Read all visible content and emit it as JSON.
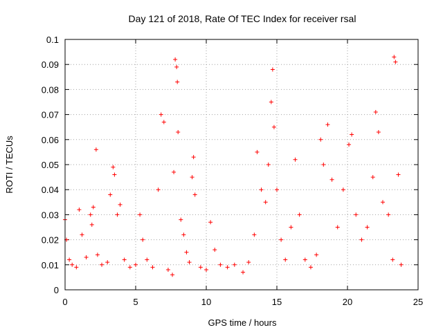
{
  "chart_data": {
    "type": "scatter",
    "title": "Day 121 of 2018, Rate Of TEC Index for receiver rsal",
    "xlabel": "GPS time / hours",
    "ylabel": "ROTI / TECUs",
    "xlim": [
      0,
      25
    ],
    "ylim": [
      0,
      0.1
    ],
    "x_ticks": [
      0,
      5,
      10,
      15,
      20,
      25
    ],
    "x_tick_labels": [
      "0",
      "5",
      "10",
      "15",
      "20",
      "25"
    ],
    "y_ticks": [
      0,
      0.01,
      0.02,
      0.03,
      0.04,
      0.05,
      0.06,
      0.07,
      0.08,
      0.09,
      0.1
    ],
    "y_tick_labels": [
      "0",
      "0.01",
      "0.02",
      "0.03",
      "0.04",
      "0.05",
      "0.06",
      "0.07",
      "0.08",
      "0.09",
      "0.1"
    ],
    "grid": true,
    "marker": "+",
    "marker_color": "#ff0000",
    "series": [
      {
        "name": "ROTI",
        "points": [
          [
            0.0,
            0.028
          ],
          [
            0.1,
            0.02
          ],
          [
            0.3,
            0.012
          ],
          [
            0.5,
            0.01
          ],
          [
            0.8,
            0.009
          ],
          [
            1.0,
            0.032
          ],
          [
            1.2,
            0.022
          ],
          [
            1.5,
            0.013
          ],
          [
            1.8,
            0.03
          ],
          [
            1.9,
            0.026
          ],
          [
            2.0,
            0.033
          ],
          [
            2.2,
            0.056
          ],
          [
            2.3,
            0.014
          ],
          [
            2.6,
            0.01
          ],
          [
            3.0,
            0.011
          ],
          [
            3.2,
            0.038
          ],
          [
            3.4,
            0.049
          ],
          [
            3.5,
            0.046
          ],
          [
            3.7,
            0.03
          ],
          [
            3.9,
            0.034
          ],
          [
            4.2,
            0.012
          ],
          [
            4.6,
            0.009
          ],
          [
            5.0,
            0.01
          ],
          [
            5.3,
            0.03
          ],
          [
            5.5,
            0.02
          ],
          [
            5.8,
            0.012
          ],
          [
            6.2,
            0.009
          ],
          [
            6.6,
            0.04
          ],
          [
            6.8,
            0.07
          ],
          [
            7.0,
            0.067
          ],
          [
            7.3,
            0.008
          ],
          [
            7.6,
            0.006
          ],
          [
            7.7,
            0.047
          ],
          [
            7.8,
            0.092
          ],
          [
            7.9,
            0.089
          ],
          [
            7.95,
            0.083
          ],
          [
            8.0,
            0.063
          ],
          [
            8.2,
            0.028
          ],
          [
            8.4,
            0.022
          ],
          [
            8.6,
            0.015
          ],
          [
            8.8,
            0.011
          ],
          [
            9.0,
            0.045
          ],
          [
            9.1,
            0.053
          ],
          [
            9.2,
            0.038
          ],
          [
            9.6,
            0.009
          ],
          [
            10.0,
            0.008
          ],
          [
            10.3,
            0.027
          ],
          [
            10.6,
            0.016
          ],
          [
            11.0,
            0.01
          ],
          [
            11.5,
            0.009
          ],
          [
            12.0,
            0.01
          ],
          [
            12.6,
            0.007
          ],
          [
            13.0,
            0.011
          ],
          [
            13.4,
            0.022
          ],
          [
            13.6,
            0.055
          ],
          [
            13.9,
            0.04
          ],
          [
            14.2,
            0.035
          ],
          [
            14.4,
            0.05
          ],
          [
            14.6,
            0.075
          ],
          [
            14.7,
            0.088
          ],
          [
            14.8,
            0.065
          ],
          [
            15.0,
            0.04
          ],
          [
            15.3,
            0.02
          ],
          [
            15.6,
            0.012
          ],
          [
            16.0,
            0.025
          ],
          [
            16.3,
            0.052
          ],
          [
            16.6,
            0.03
          ],
          [
            17.0,
            0.012
          ],
          [
            17.4,
            0.009
          ],
          [
            17.8,
            0.014
          ],
          [
            18.1,
            0.06
          ],
          [
            18.3,
            0.05
          ],
          [
            18.6,
            0.066
          ],
          [
            18.9,
            0.044
          ],
          [
            19.3,
            0.025
          ],
          [
            19.7,
            0.04
          ],
          [
            20.1,
            0.058
          ],
          [
            20.3,
            0.062
          ],
          [
            20.6,
            0.03
          ],
          [
            21.0,
            0.02
          ],
          [
            21.4,
            0.025
          ],
          [
            21.8,
            0.045
          ],
          [
            22.0,
            0.071
          ],
          [
            22.2,
            0.063
          ],
          [
            22.5,
            0.035
          ],
          [
            22.9,
            0.03
          ],
          [
            23.2,
            0.012
          ],
          [
            23.3,
            0.093
          ],
          [
            23.4,
            0.091
          ],
          [
            23.6,
            0.046
          ],
          [
            23.8,
            0.01
          ]
        ]
      }
    ]
  }
}
